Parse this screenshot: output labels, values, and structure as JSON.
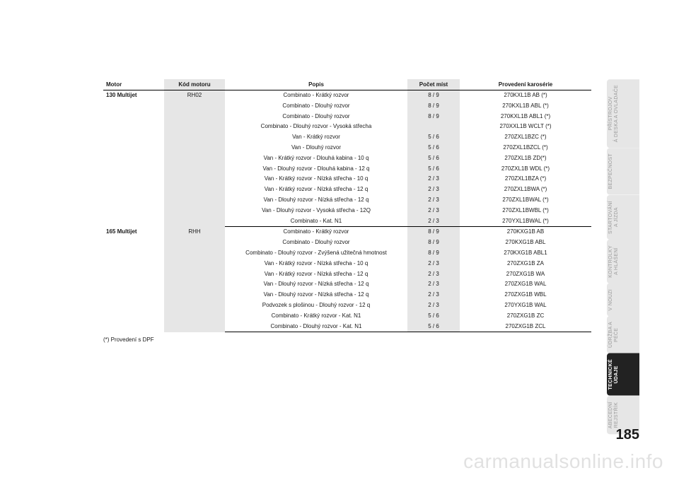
{
  "page_number": "185",
  "footnote": "(*) Provedení s DPF",
  "watermark": "carmanualsonline.info",
  "tabs": [
    {
      "line1": "PŘÍSTROJOV",
      "line2": "Á DESKA A OVLADAČE",
      "active": false
    },
    {
      "line1": "BEZPEČNOST",
      "line2": "",
      "active": false
    },
    {
      "line1": "STARTOVÁNÍ",
      "line2": "A JÍZDA",
      "active": false
    },
    {
      "line1": "KONTROLKY",
      "line2": "A HLÁŠENÍ",
      "active": false
    },
    {
      "line1": "V NOUZI",
      "line2": "",
      "active": false
    },
    {
      "line1": "ÚDRŽBA A",
      "line2": "PÉČE",
      "active": false
    },
    {
      "line1": "TECHNICKÉ",
      "line2": "ÚDAJE",
      "active": true
    },
    {
      "line1": "ABECEDNÍ",
      "line2": "REJSTŘÍK",
      "active": false
    }
  ],
  "table": {
    "headers": {
      "motor": "Motor",
      "kod": "Kód motoru",
      "popis": "Popis",
      "pocet": "Počet míst",
      "prov": "Provedení karosérie"
    },
    "groups": [
      {
        "motor": "130 Multijet",
        "kod": "RH02",
        "rows": [
          {
            "popis": "Combinato - Krátký rozvor",
            "pocet": "8 / 9",
            "prov": "270KXL1B AB (*)"
          },
          {
            "popis": "Combinato - Dlouhý rozvor",
            "pocet": "8 / 9",
            "prov": "270KXL1B ABL (*)"
          },
          {
            "popis": "Combinato - Dlouhý rozvor",
            "pocet": "8 / 9",
            "prov": "270KXL1B ABL1 (*)"
          },
          {
            "popis": "Combinato - Dlouhý rozvor - Vysoká střecha",
            "pocet": "",
            "prov": "270XXL1B WCLT (*)"
          },
          {
            "popis": "Van - Krátký rozvor",
            "pocet": "5 / 6",
            "prov": "270ZXL1BZC (*)"
          },
          {
            "popis": "Van - Dlouhý rozvor",
            "pocet": "5 / 6",
            "prov": "270ZXL1BZCL (*)"
          },
          {
            "popis": "Van - Krátký rozvor - Dlouhá kabina - 10 q",
            "pocet": "5 / 6",
            "prov": "270ZXL1B ZD(*)"
          },
          {
            "popis": "Van - Dlouhý rozvor - Dlouhá kabina - 12 q",
            "pocet": "5 / 6",
            "prov": "270ZXL1B WDL (*)"
          },
          {
            "popis": "Van - Krátký rozvor - Nízká střecha - 10 q",
            "pocet": "2 / 3",
            "prov": "270ZXL1BZA (*)"
          },
          {
            "popis": "Van - Krátký rozvor - Nízká střecha - 12 q",
            "pocet": "2 / 3",
            "prov": "270ZXL1BWA (*)"
          },
          {
            "popis": "Van - Dlouhý rozvor - Nízká střecha - 12 q",
            "pocet": "2 / 3",
            "prov": "270ZXL1BWAL (*)"
          },
          {
            "popis": "Van - Dlouhý rozvor - Vysoká střecha - 12Q",
            "pocet": "2 / 3",
            "prov": "270ZXL1BWBL (*)"
          },
          {
            "popis": "Combinato -  Kat. N1",
            "pocet": "2 / 3",
            "prov": "270YXL1BWAL (*)"
          }
        ]
      },
      {
        "motor": "165 Multijet",
        "kod": "RHH",
        "rows": [
          {
            "popis": "Combinato - Krátký rozvor",
            "pocet": "8 / 9",
            "prov": "270KXG1B AB"
          },
          {
            "popis": "Combinato - Dlouhý rozvor",
            "pocet": "8 / 9",
            "prov": "270KXG1B ABL"
          },
          {
            "popis": "Combinato - Dlouhý rozvor - Zvýšená užitečná hmotnost",
            "pocet": "8 / 9",
            "prov": "270KXG1B ABL1"
          },
          {
            "popis": "Van - Krátký rozvor - Nízká střecha - 10 q",
            "pocet": "2 / 3",
            "prov": "270ZXG1B ZA"
          },
          {
            "popis": "Van - Krátký rozvor - Nízká střecha - 12 q",
            "pocet": "2 / 3",
            "prov": "270ZXG1B WA"
          },
          {
            "popis": "Van - Dlouhý rozvor - Nízká střecha - 12 q",
            "pocet": "2 / 3",
            "prov": "270ZXG1B WAL"
          },
          {
            "popis": "Van - Dlouhý rozvor - Nízká střecha - 12 q",
            "pocet": "2 / 3",
            "prov": "270ZXG1B WBL"
          },
          {
            "popis": "Podvozek s plošinou - Dlouhý rozvor - 12 q",
            "pocet": "2 / 3",
            "prov": "270YXG1B WAL"
          },
          {
            "popis": "Combinato - Krátký rozvor - Kat. N1",
            "pocet": "5 / 6",
            "prov": "270ZXG1B ZC"
          },
          {
            "popis": "Combinato - Dlouhý rozvor - Kat. N1",
            "pocet": "5 / 6",
            "prov": "270ZXG1B ZCL"
          }
        ]
      }
    ]
  }
}
